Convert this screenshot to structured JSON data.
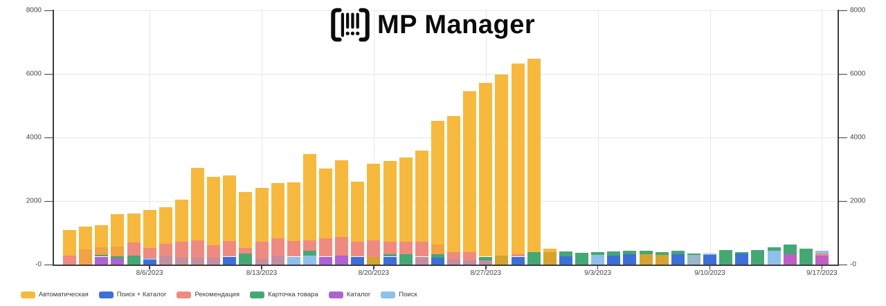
{
  "logo": {
    "text": "MP Manager",
    "icon": "barcode-brackets-icon"
  },
  "chart_data": {
    "type": "bar",
    "stacked": true,
    "grid": true,
    "legend_position": "bottom-left",
    "y_axis": {
      "min": 0,
      "max": 8000,
      "sides": "both",
      "tick_values": [
        8000,
        6000,
        4000,
        2000,
        0
      ],
      "tick_labels": [
        "8000",
        "6000",
        "4000",
        "2000",
        "-0"
      ]
    },
    "x_axis": {
      "tick_labels": [
        "8/6/2023",
        "8/13/2023",
        "8/20/2023",
        "8/27/2023",
        "9/3/2023",
        "9/10/2023",
        "9/17/2023"
      ],
      "tick_bar_index": [
        5,
        12,
        19,
        26,
        33,
        40,
        47
      ]
    },
    "series": [
      {
        "name": "Автоматическая",
        "color": "#F6B93D"
      },
      {
        "name": "Поиск + Каталог",
        "color": "#3E6FD8"
      },
      {
        "name": "Рекомендация",
        "color": "#EF8A80"
      },
      {
        "name": "Карточка товара",
        "color": "#45A874"
      },
      {
        "name": "Каталог",
        "color": "#AF63D2"
      },
      {
        "name": "Поиск",
        "color": "#8FC0EA"
      }
    ],
    "bars": [
      {
        "date": "8/1/2023",
        "segments": [
          {
            "series": "Рекомендация",
            "value": 280
          },
          {
            "series": "Автоматическая",
            "value": 810
          }
        ]
      },
      {
        "date": "8/2/2023",
        "segments": [
          {
            "series": "Рекомендация",
            "value": 480,
            "render_color": "#F0A245"
          },
          {
            "series": "Автоматическая",
            "value": 720
          }
        ]
      },
      {
        "date": "8/3/2023",
        "segments": [
          {
            "series": "Каталог",
            "value": 250
          },
          {
            "series": "Карточка товара",
            "value": 50
          },
          {
            "series": "Рекомендация",
            "value": 250,
            "render_color": "#F0A245"
          },
          {
            "series": "Автоматическая",
            "value": 690
          }
        ]
      },
      {
        "date": "8/4/2023",
        "segments": [
          {
            "series": "Каталог",
            "value": 195
          },
          {
            "series": "Карточка товара",
            "value": 60
          },
          {
            "series": "Рекомендация",
            "value": 320,
            "render_color": "#F0A245"
          },
          {
            "series": "Автоматическая",
            "value": 1015
          }
        ]
      },
      {
        "date": "8/5/2023",
        "segments": [
          {
            "series": "Карточка товара",
            "value": 280
          },
          {
            "series": "Рекомендация",
            "value": 410
          },
          {
            "series": "Автоматическая",
            "value": 920
          }
        ]
      },
      {
        "date": "8/6/2023",
        "segments": [
          {
            "series": "Поиск + Каталог",
            "value": 160
          },
          {
            "series": "Поиск",
            "value": 40
          },
          {
            "series": "Рекомендация",
            "value": 330
          },
          {
            "series": "Автоматическая",
            "value": 1190
          }
        ]
      },
      {
        "date": "8/7/2023",
        "segments": [
          {
            "series": "Каталог",
            "value": 280,
            "render_color": "#C48E9E"
          },
          {
            "series": "Рекомендация",
            "value": 370
          },
          {
            "series": "Автоматическая",
            "value": 1150
          }
        ]
      },
      {
        "date": "8/8/2023",
        "segments": [
          {
            "series": "Каталог",
            "value": 220,
            "render_color": "#C48E9E"
          },
          {
            "series": "Рекомендация",
            "value": 500
          },
          {
            "series": "Автоматическая",
            "value": 1320
          }
        ]
      },
      {
        "date": "8/9/2023",
        "segments": [
          {
            "series": "Каталог",
            "value": 220,
            "render_color": "#C48E9E"
          },
          {
            "series": "Рекомендация",
            "value": 540
          },
          {
            "series": "Автоматическая",
            "value": 2280
          }
        ]
      },
      {
        "date": "8/10/2023",
        "segments": [
          {
            "series": "Каталог",
            "value": 220,
            "render_color": "#C48E9E"
          },
          {
            "series": "Рекомендация",
            "value": 390
          },
          {
            "series": "Автоматическая",
            "value": 2150
          }
        ]
      },
      {
        "date": "8/11/2023",
        "segments": [
          {
            "series": "Поиск + Каталог",
            "value": 250
          },
          {
            "series": "Рекомендация",
            "value": 480
          },
          {
            "series": "Автоматическая",
            "value": 2070
          }
        ]
      },
      {
        "date": "8/12/2023",
        "segments": [
          {
            "series": "Карточка товара",
            "value": 350
          },
          {
            "series": "Рекомендация",
            "value": 180
          },
          {
            "series": "Автоматическая",
            "value": 1750
          }
        ]
      },
      {
        "date": "8/13/2023",
        "segments": [
          {
            "series": "Каталог",
            "value": 175,
            "render_color": "#C48E9E"
          },
          {
            "series": "Рекомендация",
            "value": 540
          },
          {
            "series": "Автоматическая",
            "value": 1700
          }
        ]
      },
      {
        "date": "8/14/2023",
        "segments": [
          {
            "series": "Каталог",
            "value": 280,
            "render_color": "#C48E9E"
          },
          {
            "series": "Рекомендация",
            "value": 550
          },
          {
            "series": "Автоматическая",
            "value": 1735
          }
        ]
      },
      {
        "date": "8/15/2023",
        "segments": [
          {
            "series": "Поиск",
            "value": 250
          },
          {
            "series": "Рекомендация",
            "value": 480
          },
          {
            "series": "Автоматическая",
            "value": 1855
          }
        ]
      },
      {
        "date": "8/16/2023",
        "segments": [
          {
            "series": "Поиск",
            "value": 280
          },
          {
            "series": "Карточка товара",
            "value": 145
          },
          {
            "series": "Рекомендация",
            "value": 330
          },
          {
            "series": "Автоматическая",
            "value": 2725
          }
        ]
      },
      {
        "date": "8/17/2023",
        "segments": [
          {
            "series": "Каталог",
            "value": 250
          },
          {
            "series": "Рекомендация",
            "value": 580
          },
          {
            "series": "Автоматическая",
            "value": 2190
          }
        ]
      },
      {
        "date": "8/18/2023",
        "segments": [
          {
            "series": "Каталог",
            "value": 280
          },
          {
            "series": "Рекомендация",
            "value": 580
          },
          {
            "series": "Автоматическая",
            "value": 2420
          }
        ]
      },
      {
        "date": "8/19/2023",
        "segments": [
          {
            "series": "Поиск + Каталог",
            "value": 250
          },
          {
            "series": "Рекомендация",
            "value": 470
          },
          {
            "series": "Автоматическая",
            "value": 1890
          }
        ]
      },
      {
        "date": "8/20/2023",
        "segments": [
          {
            "series": "Карточка товара",
            "value": 245,
            "render_color": "#D5A32F"
          },
          {
            "series": "Рекомендация",
            "value": 515
          },
          {
            "series": "Автоматическая",
            "value": 2410
          }
        ]
      },
      {
        "date": "8/21/2023",
        "segments": [
          {
            "series": "Поиск + Каталог",
            "value": 250
          },
          {
            "series": "Карточка товара",
            "value": 70
          },
          {
            "series": "Рекомендация",
            "value": 400
          },
          {
            "series": "Автоматическая",
            "value": 2540
          }
        ]
      },
      {
        "date": "8/22/2023",
        "segments": [
          {
            "series": "Карточка товара",
            "value": 320
          },
          {
            "series": "Рекомендация",
            "value": 400
          },
          {
            "series": "Автоматическая",
            "value": 2650
          }
        ]
      },
      {
        "date": "8/23/2023",
        "segments": [
          {
            "series": "Каталог",
            "value": 250,
            "render_color": "#C48E9E"
          },
          {
            "series": "Рекомендация",
            "value": 470
          },
          {
            "series": "Автоматическая",
            "value": 2870
          }
        ]
      },
      {
        "date": "8/24/2023",
        "segments": [
          {
            "series": "Поиск + Каталог",
            "value": 210
          },
          {
            "series": "Карточка товара",
            "value": 110
          },
          {
            "series": "Рекомендация",
            "value": 320,
            "render_color": "#F0A245"
          },
          {
            "series": "Автоматическая",
            "value": 3880
          }
        ]
      },
      {
        "date": "8/25/2023",
        "segments": [
          {
            "series": "Каталог",
            "value": 175,
            "render_color": "#C48E9E"
          },
          {
            "series": "Рекомендация",
            "value": 215
          },
          {
            "series": "Автоматическая",
            "value": 4280
          }
        ]
      },
      {
        "date": "8/26/2023",
        "segments": [
          {
            "series": "Каталог",
            "value": 140,
            "render_color": "#C48E9E"
          },
          {
            "series": "Рекомендация",
            "value": 255
          },
          {
            "series": "Автоматическая",
            "value": 5065
          }
        ]
      },
      {
        "date": "8/27/2023",
        "segments": [
          {
            "series": "Каталог",
            "value": 140,
            "render_color": "#C48E9E"
          },
          {
            "series": "Карточка товара",
            "value": 110
          },
          {
            "series": "Автоматическая",
            "value": 5470
          }
        ]
      },
      {
        "date": "8/28/2023",
        "segments": [
          {
            "series": "Карточка товара",
            "value": 285,
            "render_color": "#D5A32F"
          },
          {
            "series": "Автоматическая",
            "value": 5695
          }
        ]
      },
      {
        "date": "8/29/2023",
        "segments": [
          {
            "series": "Поиск + Каталог",
            "value": 250
          },
          {
            "series": "Рекомендация",
            "value": 70
          },
          {
            "series": "Автоматическая",
            "value": 6010
          }
        ]
      },
      {
        "date": "8/30/2023",
        "segments": [
          {
            "series": "Карточка товара",
            "value": 390
          },
          {
            "series": "Автоматическая",
            "value": 6090
          }
        ]
      },
      {
        "date": "8/31/2023",
        "segments": [
          {
            "series": "Карточка товара",
            "value": 390,
            "render_color": "#D5A32F"
          },
          {
            "series": "Автоматическая",
            "value": 120
          }
        ]
      },
      {
        "date": "9/1/2023",
        "segments": [
          {
            "series": "Поиск + Каталог",
            "value": 260
          },
          {
            "series": "Карточка товара",
            "value": 145
          }
        ]
      },
      {
        "date": "9/2/2023",
        "segments": [
          {
            "series": "Карточка товара",
            "value": 375
          }
        ]
      },
      {
        "date": "9/3/2023",
        "segments": [
          {
            "series": "Поиск",
            "value": 300
          },
          {
            "series": "Карточка товара",
            "value": 90
          }
        ]
      },
      {
        "date": "9/4/2023",
        "segments": [
          {
            "series": "Поиск + Каталог",
            "value": 280
          },
          {
            "series": "Карточка товара",
            "value": 125
          }
        ]
      },
      {
        "date": "9/5/2023",
        "segments": [
          {
            "series": "Поиск + Каталог",
            "value": 330
          },
          {
            "series": "Карточка товара",
            "value": 95
          }
        ]
      },
      {
        "date": "9/6/2023",
        "segments": [
          {
            "series": "Автоматическая",
            "value": 320,
            "render_color": "#D5A32F"
          },
          {
            "series": "Карточка товара",
            "value": 110
          }
        ]
      },
      {
        "date": "9/7/2023",
        "segments": [
          {
            "series": "Автоматическая",
            "value": 300,
            "render_color": "#D5A32F"
          },
          {
            "series": "Карточка товара",
            "value": 95
          }
        ]
      },
      {
        "date": "9/8/2023",
        "segments": [
          {
            "series": "Поиск + Каталог",
            "value": 320
          },
          {
            "series": "Карточка товара",
            "value": 125
          }
        ]
      },
      {
        "date": "9/9/2023",
        "segments": [
          {
            "series": "Поиск",
            "value": 310,
            "render_color": "#9BB7CB"
          },
          {
            "series": "Карточка товара",
            "value": 45
          }
        ]
      },
      {
        "date": "9/10/2023",
        "segments": [
          {
            "series": "Поиск + Каталог",
            "value": 300
          },
          {
            "series": "Поиск",
            "value": 55
          }
        ]
      },
      {
        "date": "9/11/2023",
        "segments": [
          {
            "series": "Карточка товара",
            "value": 460
          }
        ]
      },
      {
        "date": "9/12/2023",
        "segments": [
          {
            "series": "Поиск + Каталог",
            "value": 340
          },
          {
            "series": "Карточка товара",
            "value": 50
          }
        ]
      },
      {
        "date": "9/13/2023",
        "segments": [
          {
            "series": "Карточка товара",
            "value": 460
          }
        ]
      },
      {
        "date": "9/14/2023",
        "segments": [
          {
            "series": "Поиск",
            "value": 440
          },
          {
            "series": "Карточка товара",
            "value": 95
          }
        ]
      },
      {
        "date": "9/15/2023",
        "segments": [
          {
            "series": "Каталог",
            "value": 320,
            "render_color": "#BF5FC4"
          },
          {
            "series": "Карточка товара",
            "value": 310
          }
        ]
      },
      {
        "date": "9/16/2023",
        "segments": [
          {
            "series": "Карточка товара",
            "value": 490
          }
        ]
      },
      {
        "date": "9/17/2023",
        "segments": [
          {
            "series": "Каталог",
            "value": 280,
            "render_color": "#BF5FC4"
          },
          {
            "series": "Рекомендация",
            "value": 75
          },
          {
            "series": "Поиск",
            "value": 85
          }
        ]
      }
    ]
  }
}
